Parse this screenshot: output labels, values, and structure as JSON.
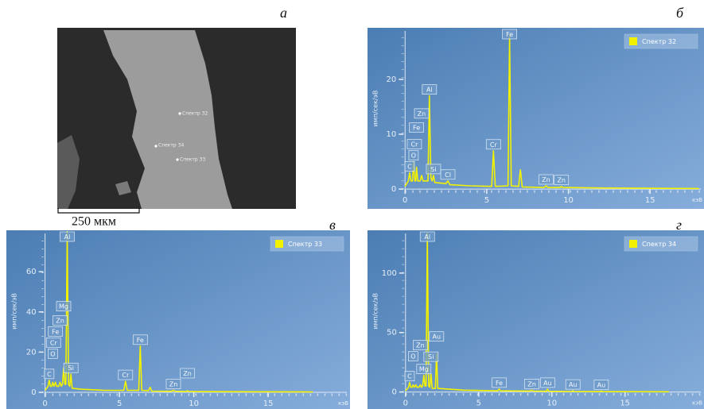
{
  "image_panel": {
    "panel_label": "а",
    "scale_bar": "250 мкм",
    "spot_labels": [
      "Спектр 32",
      "Спектр 34",
      "Спектр 33"
    ]
  },
  "chart_data": [
    {
      "type": "line",
      "panel_label": "б",
      "ylabel": "имп/сек/эВ",
      "xlabel": "кэВ",
      "x": [
        0,
        0.2,
        0.28,
        0.36,
        0.45,
        0.52,
        0.6,
        0.65,
        0.7,
        0.78,
        0.92,
        1.01,
        1.1,
        1.4,
        1.49,
        1.58,
        1.66,
        1.74,
        1.82,
        2.5,
        2.62,
        2.75,
        4,
        5.3,
        5.41,
        5.52,
        6.3,
        6.4,
        6.5,
        6.95,
        7.06,
        7.17,
        8.5,
        8.63,
        8.75,
        9.5,
        9.57,
        9.65,
        12,
        18
      ],
      "series": [
        {
          "name": "Спектр 32",
          "color": "#f2f200",
          "values": [
            0.5,
            1.5,
            3,
            1.5,
            1.5,
            5,
            1.5,
            1.5,
            4,
            1.5,
            1.5,
            2.5,
            1.5,
            1.5,
            17,
            2,
            1.5,
            2.5,
            1.2,
            1,
            1.5,
            0.8,
            0.6,
            0.5,
            7,
            0.5,
            0.6,
            28,
            0.6,
            0.5,
            3.5,
            0.4,
            0.3,
            0.6,
            0.3,
            0.3,
            0.5,
            0.3,
            0.2,
            0.1
          ]
        }
      ],
      "xlim": [
        -2.3,
        18.3
      ],
      "ylim": [
        -3.6,
        29.4
      ],
      "xticks": [
        0,
        5,
        10,
        15
      ],
      "yticks": [
        0,
        10,
        20
      ],
      "annotations": [
        {
          "label": "C",
          "x": 0.28
        },
        {
          "label": "O",
          "x": 0.52
        },
        {
          "label": "Cr",
          "x": 0.57
        },
        {
          "label": "Fe",
          "x": 0.7
        },
        {
          "label": "Zn",
          "x": 1.01
        },
        {
          "label": "Al",
          "x": 1.49
        },
        {
          "label": "Si",
          "x": 1.74
        },
        {
          "label": "Cl",
          "x": 2.62
        },
        {
          "label": "Cr",
          "x": 5.41
        },
        {
          "label": "Fe",
          "x": 6.4
        },
        {
          "label": "Zn",
          "x": 8.63
        },
        {
          "label": "Zn",
          "x": 9.57
        }
      ]
    },
    {
      "type": "line",
      "panel_label": "в",
      "ylabel": "имп/сек/эВ",
      "xlabel": "кэВ",
      "x": [
        0,
        0.2,
        0.28,
        0.36,
        0.45,
        0.52,
        0.6,
        0.7,
        0.78,
        0.92,
        1.01,
        1.1,
        1.17,
        1.25,
        1.33,
        1.4,
        1.49,
        1.58,
        1.66,
        1.74,
        1.82,
        2.5,
        4,
        5.3,
        5.41,
        5.52,
        6.3,
        6.4,
        6.5,
        6.95,
        7.06,
        7.17,
        8.5,
        8.63,
        8.75,
        9.5,
        9.57,
        9.65,
        12,
        18
      ],
      "series": [
        {
          "name": "Спектр 33",
          "color": "#f2f200",
          "values": [
            1,
            3,
            6,
            3,
            3,
            5,
            3,
            5,
            3,
            3,
            5,
            3,
            4,
            12,
            4,
            4,
            80,
            4,
            3,
            9,
            2,
            1.5,
            1,
            1,
            5.5,
            1,
            1,
            23,
            1,
            0.8,
            2.5,
            0.6,
            0.5,
            1,
            0.5,
            0.4,
            0.8,
            0.4,
            0.3,
            0.2
          ]
        }
      ],
      "xlim": [
        -2.6,
        20.5
      ],
      "ylim": [
        -8.3,
        80.6
      ],
      "xticks": [
        0,
        5,
        10,
        15
      ],
      "yticks": [
        0,
        20,
        40,
        60
      ],
      "annotations": [
        {
          "label": "C",
          "x": 0.28
        },
        {
          "label": "O",
          "x": 0.52
        },
        {
          "label": "Cr",
          "x": 0.57
        },
        {
          "label": "Fe",
          "x": 0.7
        },
        {
          "label": "Zn",
          "x": 1.01
        },
        {
          "label": "Mg",
          "x": 1.25
        },
        {
          "label": "Al",
          "x": 1.49
        },
        {
          "label": "Si",
          "x": 1.74
        },
        {
          "label": "Cr",
          "x": 5.41
        },
        {
          "label": "Fe",
          "x": 6.4
        },
        {
          "label": "Zn",
          "x": 8.63
        },
        {
          "label": "Zn",
          "x": 9.57
        }
      ]
    },
    {
      "type": "line",
      "panel_label": "г",
      "ylabel": "имп/сек/эВ",
      "xlabel": "кэВ",
      "x": [
        0,
        0.2,
        0.28,
        0.36,
        0.45,
        0.52,
        0.6,
        0.7,
        0.78,
        0.92,
        1.01,
        1.1,
        1.17,
        1.25,
        1.33,
        1.4,
        1.49,
        1.58,
        1.66,
        1.74,
        1.82,
        2.04,
        2.12,
        2.2,
        4,
        6.3,
        6.4,
        6.5,
        8.5,
        8.63,
        8.75,
        9.63,
        9.71,
        9.79,
        11.36,
        11.44,
        11.52,
        13.3,
        13.38,
        13.46,
        18
      ],
      "series": [
        {
          "name": "Спектр 34",
          "color": "#f2f200",
          "values": [
            1,
            4,
            8,
            4,
            4,
            6,
            4,
            6,
            4,
            4,
            6,
            4,
            5,
            14,
            5,
            5,
            134,
            5,
            4,
            15,
            3,
            3,
            32,
            3,
            1.5,
            1,
            2.5,
            1,
            0.8,
            1.5,
            0.8,
            0.6,
            2.5,
            0.6,
            0.4,
            1,
            0.4,
            0.3,
            0.8,
            0.3,
            0.2
          ]
        }
      ],
      "xlim": [
        -2.6,
        20.4
      ],
      "ylim": [
        -14.3,
        136
      ],
      "xticks": [
        0,
        5,
        10,
        15
      ],
      "yticks": [
        0,
        50,
        100
      ],
      "annotations": [
        {
          "label": "C",
          "x": 0.28
        },
        {
          "label": "O",
          "x": 0.52
        },
        {
          "label": "Zn",
          "x": 1.01
        },
        {
          "label": "Mg",
          "x": 1.25
        },
        {
          "label": "Al",
          "x": 1.49
        },
        {
          "label": "Si",
          "x": 1.74
        },
        {
          "label": "Au",
          "x": 2.12
        },
        {
          "label": "Fe",
          "x": 6.4
        },
        {
          "label": "Zn",
          "x": 8.63
        },
        {
          "label": "Au",
          "x": 9.71
        },
        {
          "label": "Au",
          "x": 11.44
        },
        {
          "label": "Au",
          "x": 13.38
        }
      ]
    }
  ]
}
